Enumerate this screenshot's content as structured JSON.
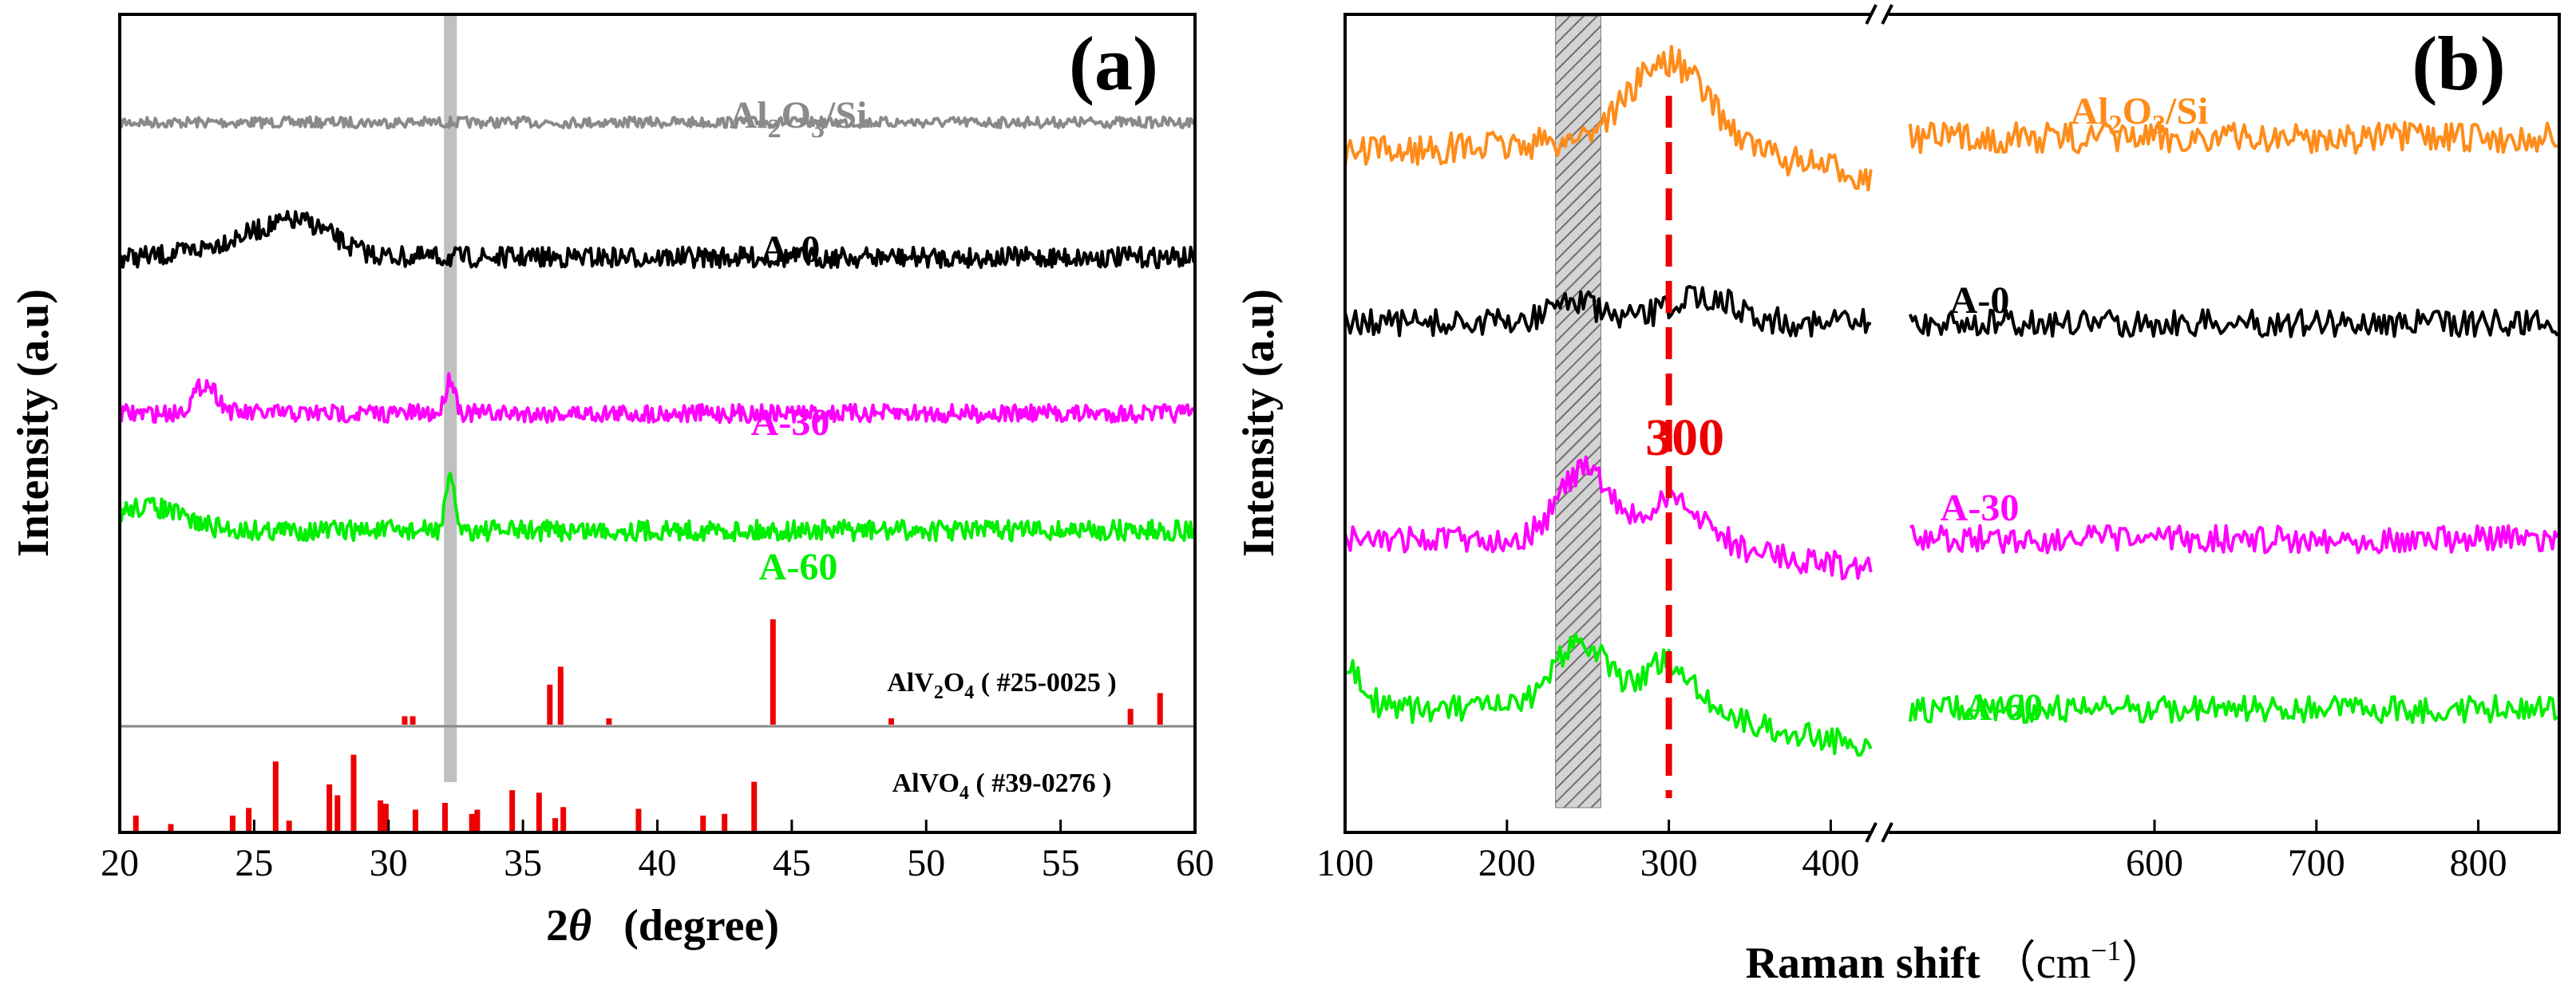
{
  "colors": {
    "gray": "#8a8a8a",
    "black": "#000000",
    "magenta": "#ff00ff",
    "green": "#00ee00",
    "orange": "#ff8c1a",
    "red": "#ff0000",
    "bar_red": "#ee0000"
  },
  "chart_data": [
    {
      "type": "line",
      "panel": "(a)",
      "xlabel_prefix": "2",
      "xlabel_theta": "θ",
      "xlabel_unit": "(degree)",
      "ylabel": "Intensity (a.u)",
      "xlim": [
        20,
        60
      ],
      "xticks": [
        20,
        25,
        30,
        35,
        40,
        45,
        50,
        55,
        60
      ],
      "highlight_x": 32.3,
      "series": [
        {
          "name": "Al2O3/Si",
          "label_main": "Al",
          "label_sub1": "2",
          "label_mid": "O",
          "label_sub2": "3",
          "label_tail": "/Si",
          "color_key": "gray",
          "baseline": 0.18,
          "noise": 0.018,
          "peaks": []
        },
        {
          "name": "A-0",
          "label": "A-0",
          "color_key": "black",
          "baseline": 0.405,
          "noise": 0.034,
          "peaks": [
            {
              "x": 25.5,
              "h": 0.04,
              "w": 2.5
            },
            {
              "x": 27,
              "h": 0.03,
              "w": 1.5
            }
          ]
        },
        {
          "name": "A-30",
          "label": "A-30",
          "color_key": "magenta",
          "baseline": 0.665,
          "noise": 0.03,
          "peaks": [
            {
              "x": 23.2,
              "h": 0.05,
              "w": 0.6
            },
            {
              "x": 32.3,
              "h": 0.06,
              "w": 0.25
            }
          ]
        },
        {
          "name": "A-60",
          "label": "A-60",
          "color_key": "green",
          "baseline": 0.86,
          "noise": 0.034,
          "peaks": [
            {
              "x": 21,
              "h": 0.04,
              "w": 1.8
            },
            {
              "x": 32.3,
              "h": 0.08,
              "w": 0.25
            }
          ]
        }
      ],
      "references": [
        {
          "name": "AlV2O4",
          "label_a": "AlV",
          "label_sub": "2",
          "label_b": "O",
          "label_sub2": "4",
          "label_c": "( #25-0025 )",
          "sticks": [
            {
              "x": 30.6,
              "h": 0.08
            },
            {
              "x": 30.9,
              "h": 0.08
            },
            {
              "x": 36.0,
              "h": 0.38
            },
            {
              "x": 36.4,
              "h": 0.55
            },
            {
              "x": 38.2,
              "h": 0.06
            },
            {
              "x": 44.3,
              "h": 1.0
            },
            {
              "x": 48.7,
              "h": 0.06
            },
            {
              "x": 57.6,
              "h": 0.15
            },
            {
              "x": 58.7,
              "h": 0.3
            }
          ]
        },
        {
          "name": "AlVO4",
          "label_a": "AlVO",
          "label_sub": "4",
          "label_c": "( #39-0276 )",
          "sticks": [
            {
              "x": 20.6,
              "h": 0.18
            },
            {
              "x": 21.9,
              "h": 0.08
            },
            {
              "x": 24.2,
              "h": 0.18
            },
            {
              "x": 24.8,
              "h": 0.27
            },
            {
              "x": 25.8,
              "h": 0.82
            },
            {
              "x": 26.3,
              "h": 0.12
            },
            {
              "x": 27.8,
              "h": 0.55
            },
            {
              "x": 28.1,
              "h": 0.42
            },
            {
              "x": 28.7,
              "h": 0.9
            },
            {
              "x": 29.7,
              "h": 0.36
            },
            {
              "x": 29.9,
              "h": 0.32
            },
            {
              "x": 31.0,
              "h": 0.25
            },
            {
              "x": 32.1,
              "h": 0.33
            },
            {
              "x": 33.1,
              "h": 0.2
            },
            {
              "x": 33.3,
              "h": 0.25
            },
            {
              "x": 34.6,
              "h": 0.48
            },
            {
              "x": 35.6,
              "h": 0.45
            },
            {
              "x": 36.2,
              "h": 0.15
            },
            {
              "x": 36.5,
              "h": 0.28
            },
            {
              "x": 39.3,
              "h": 0.26
            },
            {
              "x": 41.7,
              "h": 0.18
            },
            {
              "x": 42.5,
              "h": 0.2
            },
            {
              "x": 43.6,
              "h": 0.58
            }
          ]
        }
      ]
    },
    {
      "type": "line",
      "panel": "(b)",
      "xlabel_main": "Raman shift",
      "xlabel_unit": "（cm",
      "xlabel_sup": "−1",
      "xlabel_close": "）",
      "ylabel": "Intensity (a.u)",
      "xlim": [
        100,
        850
      ],
      "xticks": [
        100,
        200,
        300,
        400,
        600,
        700,
        800
      ],
      "axis_break": [
        425,
        445
      ],
      "highlight_range": [
        230,
        258
      ],
      "reference_line": 300,
      "reference_label": "300",
      "series": [
        {
          "name": "Al2O3/Si",
          "label_main": "Al",
          "label_sub1": "2",
          "label_mid": "O",
          "label_sub2": "3",
          "label_tail": "/Si",
          "color_key": "orange",
          "baseline": 0.16,
          "noise": 0.04,
          "peaks": [
            {
              "x": 300,
              "h": 0.1,
              "w": 35
            }
          ]
        },
        {
          "name": "A-0",
          "label": "A-0",
          "color_key": "black",
          "baseline": 0.4,
          "noise": 0.035,
          "peaks": [
            {
              "x": 240,
              "h": 0.03,
              "w": 20
            },
            {
              "x": 320,
              "h": 0.035,
              "w": 30
            }
          ]
        },
        {
          "name": "A-30",
          "label": "A-30",
          "color_key": "magenta",
          "baseline": 0.68,
          "noise": 0.035,
          "peaks": [
            {
              "x": 248,
              "h": 0.09,
              "w": 22
            },
            {
              "x": 305,
              "h": 0.05,
              "w": 25
            }
          ]
        },
        {
          "name": "A-60",
          "label": "A-60",
          "color_key": "green",
          "baseline": 0.9,
          "noise": 0.035,
          "peaks": [
            {
              "x": 100,
              "h": 0.05,
              "w": 15
            },
            {
              "x": 245,
              "h": 0.09,
              "w": 22
            },
            {
              "x": 300,
              "h": 0.06,
              "w": 25
            }
          ]
        }
      ]
    }
  ]
}
